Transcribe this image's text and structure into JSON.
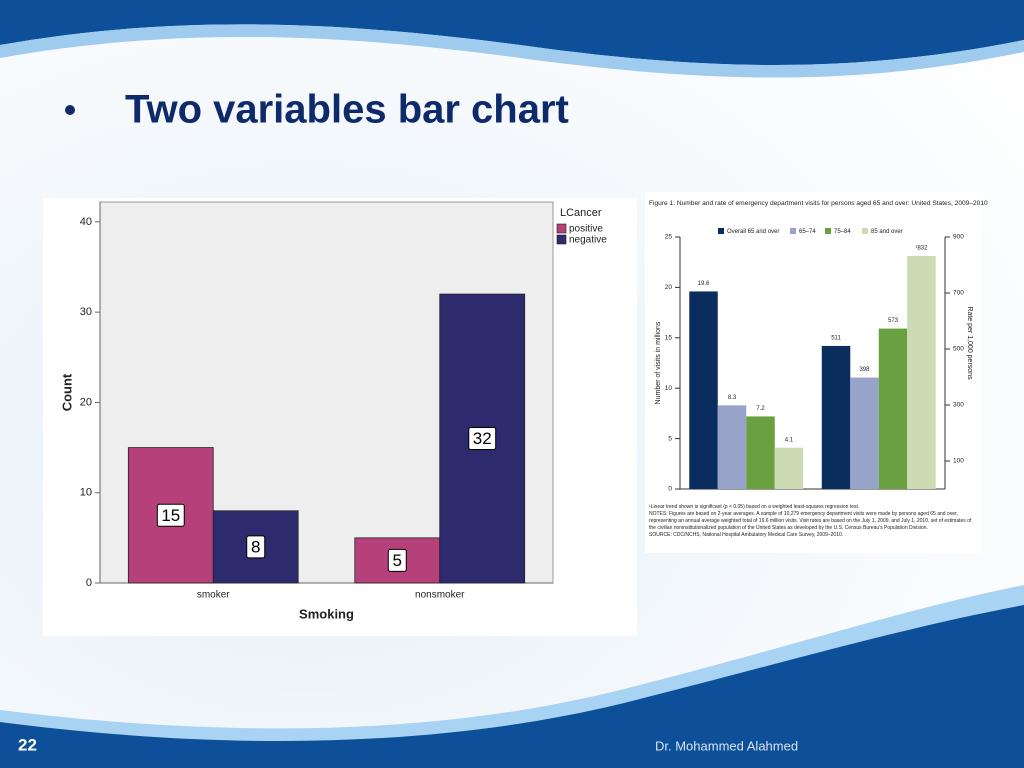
{
  "slide": {
    "title": "Two variables bar chart",
    "page_number": "22",
    "author": "Dr. Mohammed Alahmed"
  },
  "chart_data": [
    {
      "type": "bar",
      "categories": [
        "smoker",
        "nonsmoker"
      ],
      "series": [
        {
          "name": "positive",
          "color": "#b5407a",
          "values": [
            15,
            5
          ]
        },
        {
          "name": "negative",
          "color": "#2e2a6e",
          "values": [
            8,
            32
          ]
        }
      ],
      "xlabel": "Smoking",
      "ylabel": "Count",
      "legend_title": "LCancer",
      "legend": "top-right",
      "ylim": [
        0,
        42.2
      ],
      "yticks": [
        0,
        10,
        20,
        30,
        40
      ],
      "data_labels": true
    },
    {
      "type": "bar",
      "title": "Figure 1. Number and rate of emergency department visits for persons aged 65 and over: United States, 2009–2010",
      "categories": [
        null,
        null
      ],
      "category_axes": [
        "y",
        "y2"
      ],
      "series": [
        {
          "name": "Overall 65 and over",
          "color": "#0a2d5e",
          "values": [
            19.6,
            511
          ]
        },
        {
          "name": "65–74",
          "color": "#97a3c9",
          "values": [
            8.3,
            398
          ]
        },
        {
          "name": "75–84",
          "color": "#6aa140",
          "values": [
            7.2,
            573
          ]
        },
        {
          "name": "85 and over",
          "color": "#cddbb5",
          "values": [
            4.1,
            832
          ],
          "value_labels": [
            "4.1",
            "¹832"
          ]
        }
      ],
      "ylabel": "Number of visits in millions",
      "y2label": "Rate per 1,000 persons",
      "legend": "top",
      "ylim": [
        0,
        25
      ],
      "yticks": [
        0,
        5,
        10,
        15,
        20,
        25
      ],
      "y2lim": [
        0,
        900
      ],
      "y2ticks": [
        100,
        300,
        500,
        700,
        900
      ],
      "data_labels": true,
      "notes": [
        "¹Linear trend shown is significant (p < 0.05) based on a weighted least-squares regression test.",
        "NOTES: Figures are based on 2-year averages. A sample of 10,279 emergency department visits were made by persons aged 65 and over, representing an annual average weighted total of 19.6 million visits. Visit rates are based on the July 1, 2009, and July 1, 2010, set of estimates of the civilian noninstitutionalized population of the United States as developed by the U.S. Census Bureau's Population Division.",
        "SOURCE: CDC/NCHS, National Hospital Ambulatory Medical Care Survey, 2009–2010."
      ]
    }
  ]
}
